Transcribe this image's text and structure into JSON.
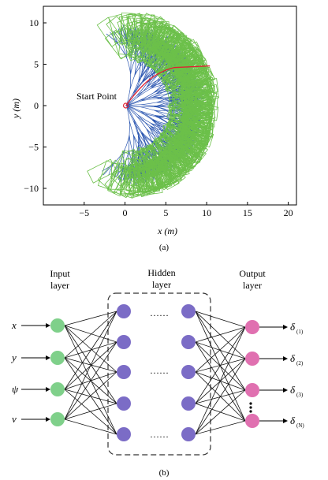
{
  "figure_a": {
    "caption": "(a)",
    "start_label": "Start Point",
    "xlabel": "x (m)",
    "ylabel": "y (m)",
    "xlim": [
      -10,
      21
    ],
    "ylim": [
      -12,
      12
    ],
    "xticks": [
      "−5",
      "0",
      "5",
      "10",
      "15",
      "20"
    ],
    "xtick_values": [
      -5,
      0,
      5,
      10,
      15,
      20
    ],
    "yticks": [
      "10",
      "5",
      "0",
      "−5",
      "−10"
    ],
    "ytick_values": [
      10,
      5,
      0,
      -5,
      -10
    ],
    "colors": {
      "trajectories": "#2a55b0",
      "footprints": "#6cc04a",
      "path": "#e02030"
    }
  },
  "figure_b": {
    "caption": "(b)",
    "input_layer_label_1": "Input",
    "input_layer_label_2": "layer",
    "hidden_layer_label_1": "Hidden",
    "hidden_layer_label_2": "layer",
    "output_layer_label_1": "Output",
    "output_layer_label_2": "layer",
    "inputs": [
      "x",
      "y",
      "ψ",
      "v"
    ],
    "outputs": [
      {
        "symbol": "δ",
        "sub": "(1)"
      },
      {
        "symbol": "δ",
        "sub": "(2)"
      },
      {
        "symbol": "δ",
        "sub": "(3)"
      },
      {
        "symbol": "δ",
        "sub": "(N)"
      }
    ],
    "ellipsis": "……",
    "colors": {
      "input": "#7fd08a",
      "hidden": "#7b6cc6",
      "output": "#e070b0"
    }
  }
}
